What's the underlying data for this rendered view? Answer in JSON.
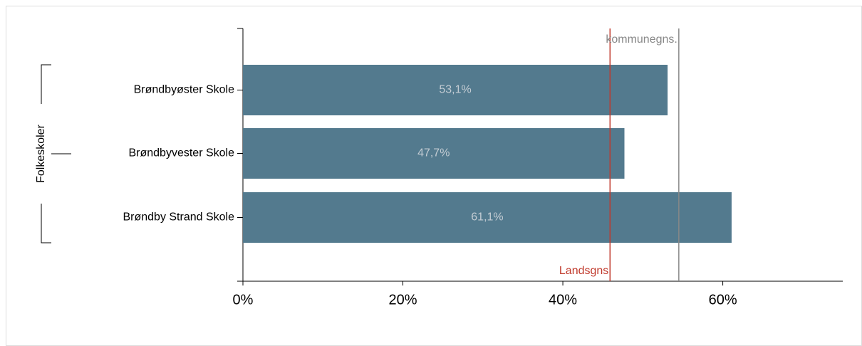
{
  "chart_data": {
    "type": "bar",
    "orientation": "horizontal",
    "group_label": "Folkeskoler",
    "categories": [
      "Brøndbyøster Skole",
      "Brøndbyvester Skole",
      "Brøndby Strand Skole"
    ],
    "values": [
      53.1,
      47.7,
      61.1
    ],
    "value_labels": [
      "53,1%",
      "47,7%",
      "61,1%"
    ],
    "color": "#537a8e",
    "xlim": [
      0,
      75
    ],
    "xticks": [
      {
        "value": 0,
        "label": "0%"
      },
      {
        "value": 20,
        "label": "20%"
      },
      {
        "value": 40,
        "label": "40%"
      },
      {
        "value": 60,
        "label": "60%"
      }
    ],
    "reference_lines": [
      {
        "label": "Landsgns",
        "value": 45.9,
        "color": "#c0392b"
      },
      {
        "label": "kommunegns.",
        "value": 54.5,
        "color": "#888888"
      }
    ]
  }
}
